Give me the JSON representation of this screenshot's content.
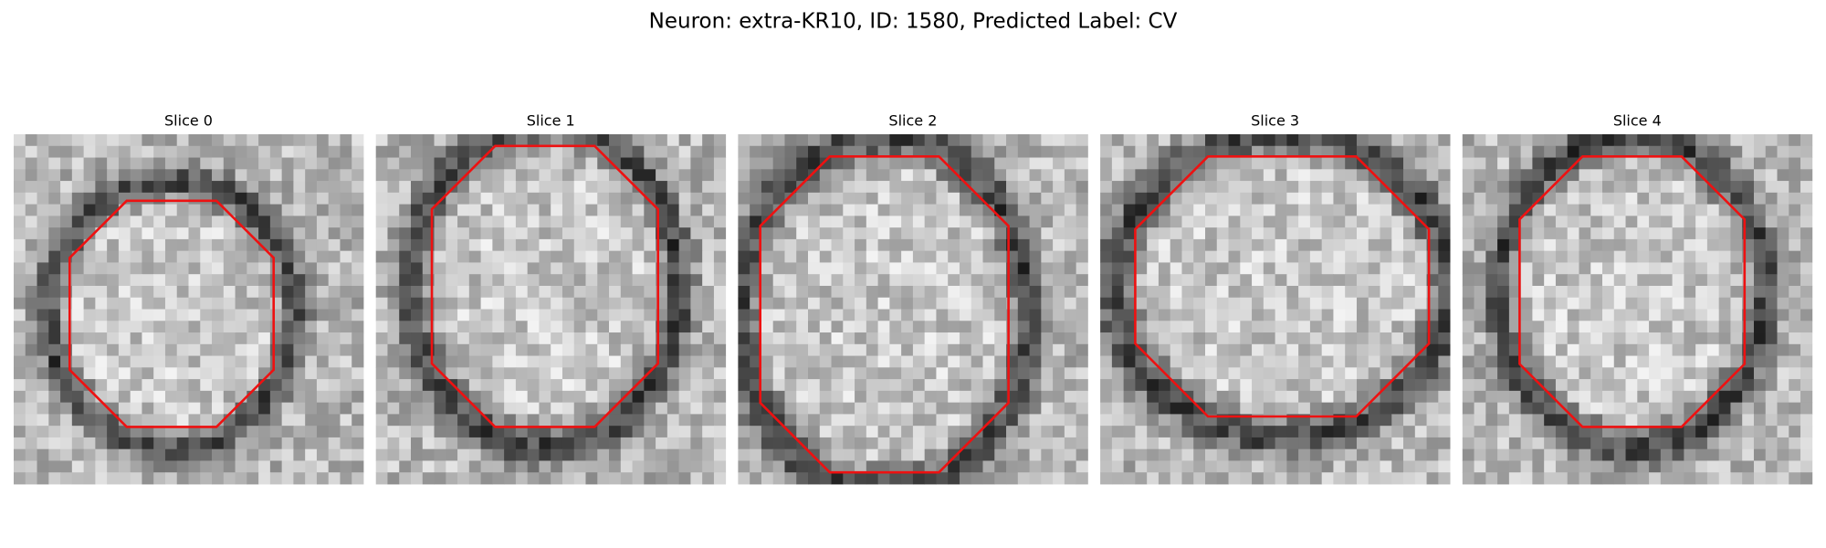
{
  "title": "Neuron: extra-KR10, ID: 1580, Predicted Label: CV",
  "panels": [
    {
      "title": "Slice 0"
    },
    {
      "title": "Slice 1"
    },
    {
      "title": "Slice 2"
    },
    {
      "title": "Slice 3"
    },
    {
      "title": "Slice 4"
    }
  ]
}
